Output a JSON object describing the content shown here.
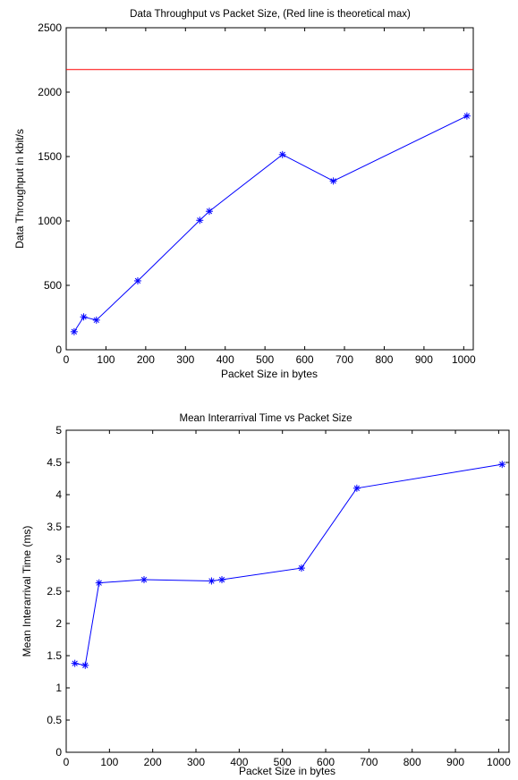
{
  "chart_data": [
    {
      "type": "line",
      "title": "Data Throughput vs Packet Size, (Red line is theoretical max)",
      "xlabel": "Packet Size in bytes",
      "ylabel": "Data Throughput in kbit/s",
      "xlim": [
        0,
        1024
      ],
      "ylim": [
        0,
        2500
      ],
      "xticks": [
        0,
        100,
        200,
        300,
        400,
        500,
        600,
        700,
        800,
        900,
        1000
      ],
      "yticks": [
        0,
        500,
        1000,
        1500,
        2000,
        2500
      ],
      "grid": false,
      "series": [
        {
          "color": "#0000ff",
          "marker": "asterisk",
          "x": [
            20,
            44,
            76,
            180,
            336,
            360,
            544,
            672,
            1008
          ],
          "y": [
            140,
            255,
            230,
            535,
            1005,
            1075,
            1515,
            1310,
            1815
          ]
        },
        {
          "color": "#ff0000",
          "marker": "none",
          "x": [
            0,
            1024
          ],
          "y": [
            2175,
            2175
          ]
        }
      ]
    },
    {
      "type": "line",
      "title": "Mean Interarrival Time vs Packet Size",
      "xlabel": "Packet Size in bytes",
      "ylabel": "Mean Interarrival Time (ms)",
      "xlim": [
        0,
        1024
      ],
      "ylim": [
        0,
        5
      ],
      "xticks": [
        0,
        100,
        200,
        300,
        400,
        500,
        600,
        700,
        800,
        900,
        1000
      ],
      "yticks": [
        0,
        0.5,
        1,
        1.5,
        2,
        2.5,
        3,
        3.5,
        4,
        4.5,
        5
      ],
      "grid": false,
      "series": [
        {
          "color": "#0000ff",
          "marker": "asterisk",
          "x": [
            20,
            44,
            76,
            180,
            336,
            360,
            544,
            672,
            1008
          ],
          "y": [
            1.38,
            1.35,
            2.63,
            2.68,
            2.66,
            2.68,
            2.86,
            4.1,
            4.47
          ]
        }
      ]
    }
  ]
}
